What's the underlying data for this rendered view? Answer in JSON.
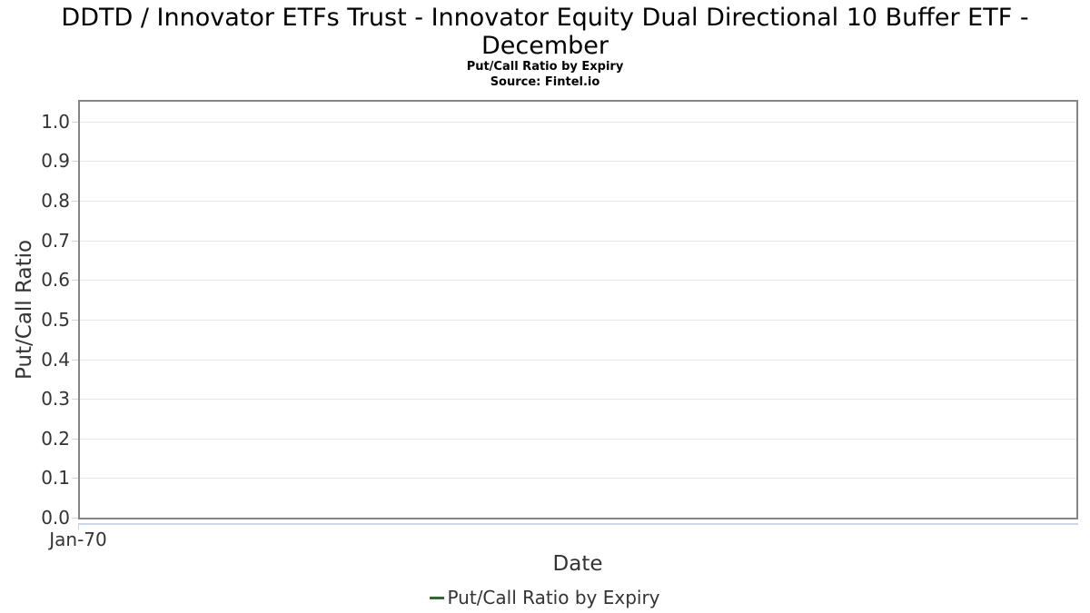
{
  "page": {
    "title_lines": [
      "DDTD / Innovator ETFs Trust - Innovator Equity Dual Directional 10 Buffer ETF -",
      "December"
    ]
  },
  "chart_data": {
    "type": "line",
    "title": "DDTD / Innovator ETFs Trust - Innovator Equity Dual Directional 10 Buffer ETF - December",
    "subtitle": "Put/Call Ratio by Expiry",
    "source": "Source: Fintel.io",
    "xlabel": "Date",
    "ylabel": "Put/Call Ratio",
    "x_tick_labels": [
      "Jan-70"
    ],
    "y_ticks": [
      0.0,
      0.1,
      0.2,
      0.3,
      0.4,
      0.5,
      0.6,
      0.7,
      0.8,
      0.9,
      1.0
    ],
    "ylim": [
      0,
      1.05
    ],
    "grid": true,
    "legend_position": "bottom",
    "series": [
      {
        "name": "Put/Call Ratio by Expiry",
        "color": "#2e6b31",
        "x": [],
        "values": []
      }
    ]
  },
  "colors": {
    "accent_green": "#2e6b31",
    "plot_border": "#858585",
    "gridline": "#e8e8e8",
    "axis_line": "#ccd6eb",
    "tick_text": "#333333",
    "title_text": "#000000"
  }
}
